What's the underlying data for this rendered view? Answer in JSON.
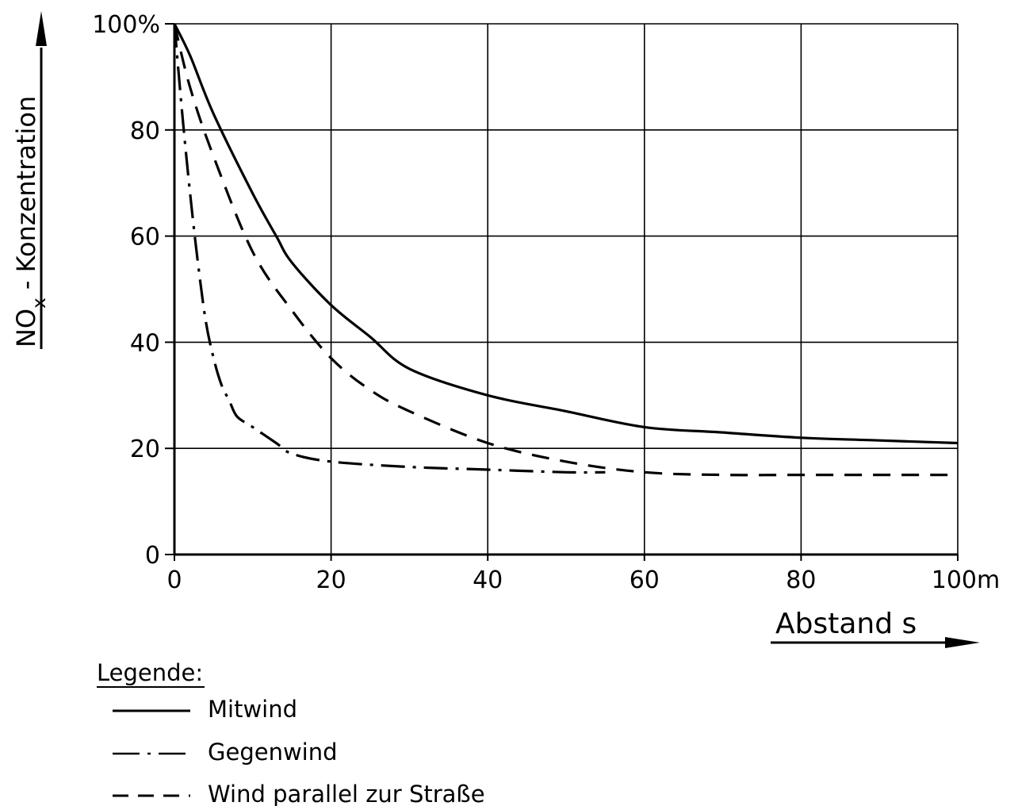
{
  "chart_data": {
    "type": "line",
    "xlabel": "Abstand s",
    "ylabel_main": "NO",
    "ylabel_sub": "x",
    "ylabel_rest": " - Konzentration",
    "x_ticks": [
      {
        "value": 0,
        "label": "0"
      },
      {
        "value": 20,
        "label": "20"
      },
      {
        "value": 40,
        "label": "40"
      },
      {
        "value": 60,
        "label": "60"
      },
      {
        "value": 80,
        "label": "80"
      },
      {
        "value": 100,
        "label": "100m"
      }
    ],
    "y_ticks": [
      {
        "value": 0,
        "label": "0"
      },
      {
        "value": 20,
        "label": "20"
      },
      {
        "value": 40,
        "label": "40"
      },
      {
        "value": 60,
        "label": "60"
      },
      {
        "value": 80,
        "label": "80"
      },
      {
        "value": 100,
        "label": "100%"
      }
    ],
    "xlim": [
      0,
      100
    ],
    "ylim": [
      0,
      100
    ],
    "grid": true,
    "legend_title": "Legende:",
    "series": [
      {
        "name": "Mitwind",
        "style": "solid",
        "x": [
          0,
          2,
          5,
          10,
          13,
          15,
          20,
          25,
          30,
          40,
          50,
          60,
          70,
          80,
          90,
          100
        ],
        "y": [
          100,
          94,
          83,
          68,
          60,
          55,
          47,
          41,
          35,
          30,
          27,
          24,
          23,
          22,
          21.5,
          21
        ]
      },
      {
        "name": "Gegenwind",
        "style": "dashdot",
        "x": [
          0,
          1,
          2,
          3,
          4,
          5,
          6,
          7,
          8,
          10,
          13,
          15,
          20,
          30,
          40,
          50,
          55
        ],
        "y": [
          100,
          83,
          68,
          55,
          44,
          37,
          32,
          29,
          26,
          24,
          21,
          19,
          17.5,
          16.5,
          16,
          15.5,
          15.5
        ]
      },
      {
        "name": "Wind parallel zur Straße",
        "style": "dashed",
        "x": [
          0,
          2,
          5,
          10,
          15,
          20,
          25,
          30,
          40,
          50,
          60,
          70,
          80,
          90,
          100
        ],
        "y": [
          100,
          88,
          75,
          57,
          46,
          37,
          31,
          27,
          21,
          17.5,
          15.5,
          15,
          15,
          15,
          15
        ]
      }
    ]
  }
}
